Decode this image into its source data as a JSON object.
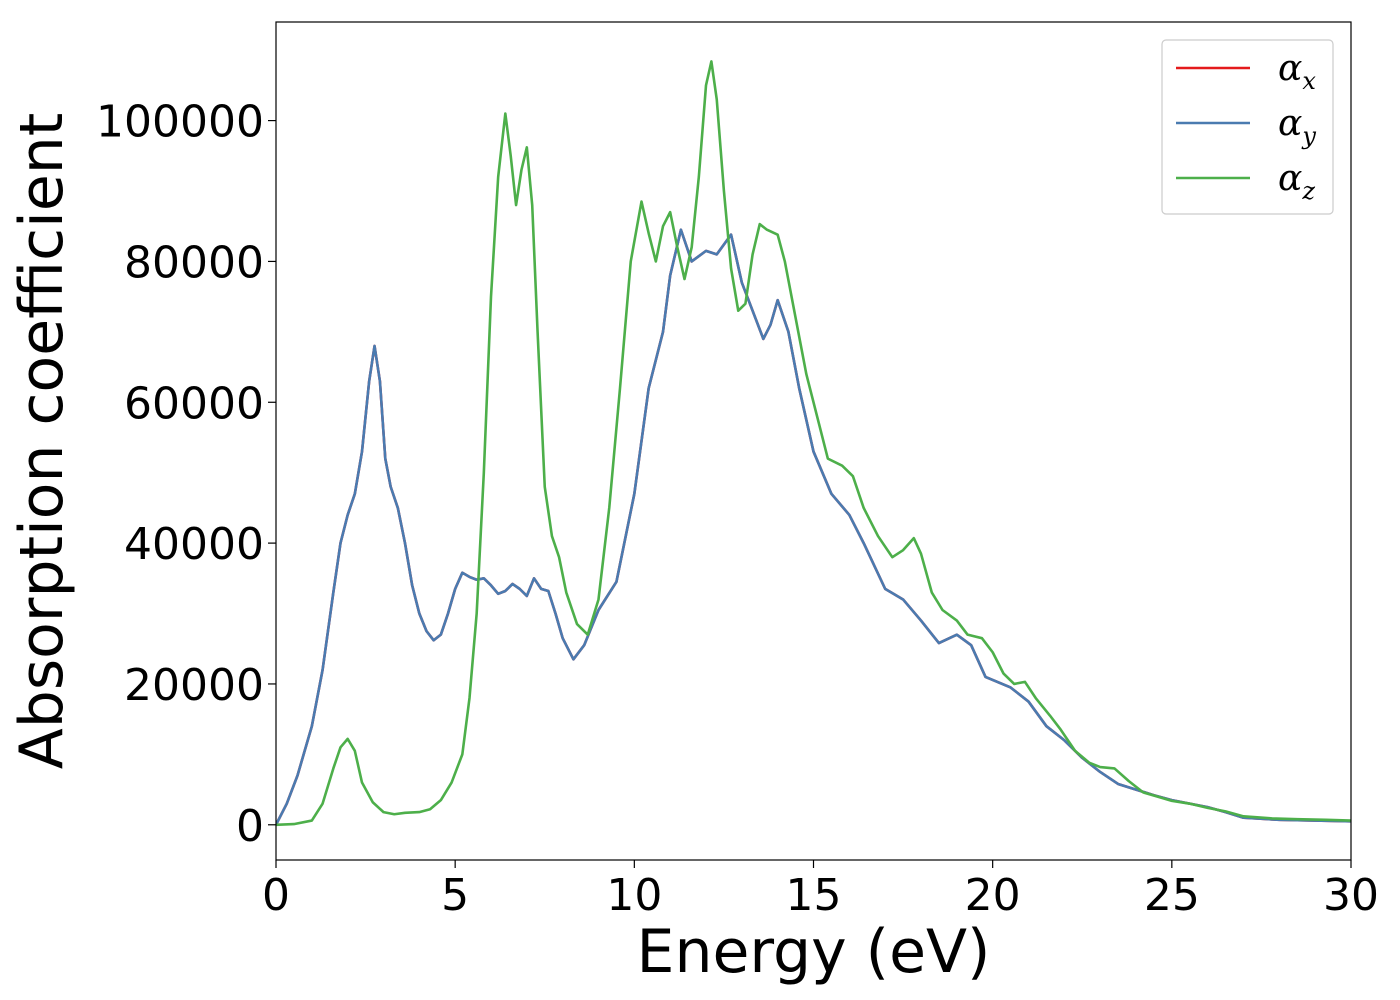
{
  "chart_data": {
    "type": "line",
    "title": "",
    "xlabel": "Energy (eV)",
    "ylabel": "Absorption coefficient",
    "xlim": [
      0,
      30
    ],
    "ylim": [
      -5000,
      114000
    ],
    "xticks": [
      0,
      5,
      10,
      15,
      20,
      25,
      30
    ],
    "yticks": [
      0,
      20000,
      40000,
      60000,
      80000,
      100000
    ],
    "grid": false,
    "legend": {
      "position": "top-right",
      "entries": [
        {
          "symbol": "α",
          "sub": "x",
          "color": "#e41a1c"
        },
        {
          "symbol": "α",
          "sub": "y",
          "color": "#4a7bb0"
        },
        {
          "symbol": "α",
          "sub": "z",
          "color": "#4daf4a"
        }
      ]
    },
    "series": [
      {
        "key": "alpha_x",
        "color": "#e41a1c",
        "points": [
          [
            0,
            0
          ],
          [
            0.3,
            3000
          ],
          [
            0.6,
            7000
          ],
          [
            1.0,
            14000
          ],
          [
            1.3,
            22000
          ],
          [
            1.6,
            33000
          ],
          [
            1.8,
            40000
          ],
          [
            2.0,
            44000
          ],
          [
            2.2,
            47000
          ],
          [
            2.4,
            53000
          ],
          [
            2.6,
            63000
          ],
          [
            2.75,
            68000
          ],
          [
            2.9,
            63000
          ],
          [
            3.05,
            52000
          ],
          [
            3.2,
            48000
          ],
          [
            3.4,
            45000
          ],
          [
            3.6,
            40000
          ],
          [
            3.8,
            34000
          ],
          [
            4.0,
            30000
          ],
          [
            4.2,
            27500
          ],
          [
            4.4,
            26200
          ],
          [
            4.6,
            27000
          ],
          [
            4.8,
            30000
          ],
          [
            5.0,
            33500
          ],
          [
            5.2,
            35800
          ],
          [
            5.4,
            35200
          ],
          [
            5.6,
            34800
          ],
          [
            5.8,
            35000
          ],
          [
            6.0,
            34000
          ],
          [
            6.2,
            32800
          ],
          [
            6.4,
            33200
          ],
          [
            6.6,
            34200
          ],
          [
            6.8,
            33500
          ],
          [
            7.0,
            32500
          ],
          [
            7.2,
            35000
          ],
          [
            7.4,
            33500
          ],
          [
            7.6,
            33200
          ],
          [
            7.8,
            30000
          ],
          [
            8.0,
            26500
          ],
          [
            8.3,
            23500
          ],
          [
            8.6,
            25500
          ],
          [
            9.0,
            30500
          ],
          [
            9.5,
            34500
          ],
          [
            10.0,
            47000
          ],
          [
            10.4,
            62000
          ],
          [
            10.8,
            70000
          ],
          [
            11.0,
            78000
          ],
          [
            11.3,
            84500
          ],
          [
            11.6,
            80000
          ],
          [
            12.0,
            81500
          ],
          [
            12.3,
            81000
          ],
          [
            12.7,
            83800
          ],
          [
            13.0,
            77000
          ],
          [
            13.3,
            73000
          ],
          [
            13.6,
            69000
          ],
          [
            13.8,
            71000
          ],
          [
            14.0,
            74500
          ],
          [
            14.3,
            70000
          ],
          [
            14.6,
            62000
          ],
          [
            15.0,
            53000
          ],
          [
            15.5,
            47000
          ],
          [
            16.0,
            44000
          ],
          [
            16.4,
            40000
          ],
          [
            17.0,
            33500
          ],
          [
            17.5,
            32000
          ],
          [
            18.0,
            29000
          ],
          [
            18.5,
            25800
          ],
          [
            19.0,
            27000
          ],
          [
            19.4,
            25500
          ],
          [
            19.8,
            21000
          ],
          [
            20.5,
            19500
          ],
          [
            21.0,
            17500
          ],
          [
            21.5,
            14000
          ],
          [
            22.0,
            12000
          ],
          [
            22.5,
            9500
          ],
          [
            23.0,
            7500
          ],
          [
            23.5,
            5800
          ],
          [
            24.0,
            5000
          ],
          [
            24.5,
            4200
          ],
          [
            25.0,
            3500
          ],
          [
            25.5,
            3000
          ],
          [
            26.0,
            2500
          ],
          [
            26.5,
            1800
          ],
          [
            27.0,
            1000
          ],
          [
            28.0,
            700
          ],
          [
            29.0,
            600
          ],
          [
            30.0,
            500
          ]
        ]
      },
      {
        "key": "alpha_y",
        "color": "#4a7bb0",
        "points": [
          [
            0,
            0
          ],
          [
            0.3,
            3000
          ],
          [
            0.6,
            7000
          ],
          [
            1.0,
            14000
          ],
          [
            1.3,
            22000
          ],
          [
            1.6,
            33000
          ],
          [
            1.8,
            40000
          ],
          [
            2.0,
            44000
          ],
          [
            2.2,
            47000
          ],
          [
            2.4,
            53000
          ],
          [
            2.6,
            63000
          ],
          [
            2.75,
            68000
          ],
          [
            2.9,
            63000
          ],
          [
            3.05,
            52000
          ],
          [
            3.2,
            48000
          ],
          [
            3.4,
            45000
          ],
          [
            3.6,
            40000
          ],
          [
            3.8,
            34000
          ],
          [
            4.0,
            30000
          ],
          [
            4.2,
            27500
          ],
          [
            4.4,
            26200
          ],
          [
            4.6,
            27000
          ],
          [
            4.8,
            30000
          ],
          [
            5.0,
            33500
          ],
          [
            5.2,
            35800
          ],
          [
            5.4,
            35200
          ],
          [
            5.6,
            34800
          ],
          [
            5.8,
            35000
          ],
          [
            6.0,
            34000
          ],
          [
            6.2,
            32800
          ],
          [
            6.4,
            33200
          ],
          [
            6.6,
            34200
          ],
          [
            6.8,
            33500
          ],
          [
            7.0,
            32500
          ],
          [
            7.2,
            35000
          ],
          [
            7.4,
            33500
          ],
          [
            7.6,
            33200
          ],
          [
            7.8,
            30000
          ],
          [
            8.0,
            26500
          ],
          [
            8.3,
            23500
          ],
          [
            8.6,
            25500
          ],
          [
            9.0,
            30500
          ],
          [
            9.5,
            34500
          ],
          [
            10.0,
            47000
          ],
          [
            10.4,
            62000
          ],
          [
            10.8,
            70000
          ],
          [
            11.0,
            78000
          ],
          [
            11.3,
            84500
          ],
          [
            11.6,
            80000
          ],
          [
            12.0,
            81500
          ],
          [
            12.3,
            81000
          ],
          [
            12.7,
            83800
          ],
          [
            13.0,
            77000
          ],
          [
            13.3,
            73000
          ],
          [
            13.6,
            69000
          ],
          [
            13.8,
            71000
          ],
          [
            14.0,
            74500
          ],
          [
            14.3,
            70000
          ],
          [
            14.6,
            62000
          ],
          [
            15.0,
            53000
          ],
          [
            15.5,
            47000
          ],
          [
            16.0,
            44000
          ],
          [
            16.4,
            40000
          ],
          [
            17.0,
            33500
          ],
          [
            17.5,
            32000
          ],
          [
            18.0,
            29000
          ],
          [
            18.5,
            25800
          ],
          [
            19.0,
            27000
          ],
          [
            19.4,
            25500
          ],
          [
            19.8,
            21000
          ],
          [
            20.5,
            19500
          ],
          [
            21.0,
            17500
          ],
          [
            21.5,
            14000
          ],
          [
            22.0,
            12000
          ],
          [
            22.5,
            9500
          ],
          [
            23.0,
            7500
          ],
          [
            23.5,
            5800
          ],
          [
            24.0,
            5000
          ],
          [
            24.5,
            4200
          ],
          [
            25.0,
            3500
          ],
          [
            25.5,
            3000
          ],
          [
            26.0,
            2500
          ],
          [
            26.5,
            1800
          ],
          [
            27.0,
            1000
          ],
          [
            28.0,
            700
          ],
          [
            29.0,
            600
          ],
          [
            30.0,
            500
          ]
        ]
      },
      {
        "key": "alpha_z",
        "color": "#4daf4a",
        "points": [
          [
            0,
            0
          ],
          [
            0.5,
            100
          ],
          [
            1.0,
            600
          ],
          [
            1.3,
            3000
          ],
          [
            1.6,
            8000
          ],
          [
            1.8,
            11000
          ],
          [
            2.0,
            12200
          ],
          [
            2.2,
            10500
          ],
          [
            2.4,
            6000
          ],
          [
            2.7,
            3200
          ],
          [
            3.0,
            1800
          ],
          [
            3.3,
            1500
          ],
          [
            3.6,
            1700
          ],
          [
            4.0,
            1800
          ],
          [
            4.3,
            2200
          ],
          [
            4.6,
            3500
          ],
          [
            4.9,
            6000
          ],
          [
            5.2,
            10000
          ],
          [
            5.4,
            18000
          ],
          [
            5.6,
            30000
          ],
          [
            5.8,
            50000
          ],
          [
            6.0,
            75000
          ],
          [
            6.2,
            92000
          ],
          [
            6.4,
            101000
          ],
          [
            6.55,
            95000
          ],
          [
            6.7,
            88000
          ],
          [
            6.85,
            93000
          ],
          [
            7.0,
            96200
          ],
          [
            7.15,
            88000
          ],
          [
            7.3,
            70000
          ],
          [
            7.5,
            48000
          ],
          [
            7.7,
            41000
          ],
          [
            7.9,
            38000
          ],
          [
            8.1,
            33000
          ],
          [
            8.4,
            28500
          ],
          [
            8.7,
            27000
          ],
          [
            9.0,
            32000
          ],
          [
            9.3,
            45000
          ],
          [
            9.6,
            62000
          ],
          [
            9.9,
            80000
          ],
          [
            10.2,
            88500
          ],
          [
            10.4,
            84000
          ],
          [
            10.6,
            80000
          ],
          [
            10.8,
            85000
          ],
          [
            11.0,
            87000
          ],
          [
            11.2,
            82000
          ],
          [
            11.4,
            77500
          ],
          [
            11.6,
            82000
          ],
          [
            11.8,
            92000
          ],
          [
            12.0,
            105000
          ],
          [
            12.15,
            108400
          ],
          [
            12.3,
            103000
          ],
          [
            12.5,
            90000
          ],
          [
            12.7,
            79000
          ],
          [
            12.9,
            73000
          ],
          [
            13.1,
            74000
          ],
          [
            13.3,
            81000
          ],
          [
            13.5,
            85300
          ],
          [
            13.7,
            84500
          ],
          [
            14.0,
            83800
          ],
          [
            14.2,
            80000
          ],
          [
            14.5,
            72000
          ],
          [
            14.8,
            64000
          ],
          [
            15.1,
            58000
          ],
          [
            15.4,
            52000
          ],
          [
            15.8,
            51000
          ],
          [
            16.1,
            49500
          ],
          [
            16.4,
            45000
          ],
          [
            16.8,
            41000
          ],
          [
            17.2,
            38000
          ],
          [
            17.5,
            39000
          ],
          [
            17.8,
            40700
          ],
          [
            18.0,
            38500
          ],
          [
            18.3,
            33000
          ],
          [
            18.6,
            30500
          ],
          [
            19.0,
            29000
          ],
          [
            19.3,
            27000
          ],
          [
            19.7,
            26500
          ],
          [
            20.0,
            24500
          ],
          [
            20.3,
            21500
          ],
          [
            20.6,
            20000
          ],
          [
            20.9,
            20300
          ],
          [
            21.2,
            18000
          ],
          [
            21.6,
            15500
          ],
          [
            21.9,
            13500
          ],
          [
            22.3,
            10500
          ],
          [
            22.7,
            8800
          ],
          [
            23.0,
            8200
          ],
          [
            23.4,
            8000
          ],
          [
            23.8,
            6200
          ],
          [
            24.2,
            4600
          ],
          [
            24.6,
            4000
          ],
          [
            25.0,
            3400
          ],
          [
            25.5,
            3000
          ],
          [
            26.0,
            2400
          ],
          [
            26.5,
            1900
          ],
          [
            27.0,
            1200
          ],
          [
            27.8,
            900
          ],
          [
            28.5,
            800
          ],
          [
            29.3,
            700
          ],
          [
            30.0,
            600
          ]
        ]
      }
    ]
  }
}
